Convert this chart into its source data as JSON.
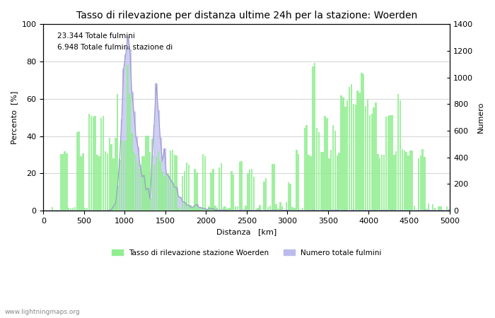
{
  "title": "Tasso di rilevazione per distanza ultime 24h per la stazione: Woerden",
  "xlabel": "Distanza   [km]",
  "ylabel_left": "Percento  [%]",
  "ylabel_right": "Numero",
  "annotation_line1": "23.344 Totale fulmini",
  "annotation_line2": "6.948 Totale fulmini stazione di",
  "legend_label_green": "Tasso di rilevazione stazione Woerden",
  "legend_label_blue": "Numero totale fulmini",
  "watermark": "www.lightningmaps.org",
  "xlim": [
    0,
    5000
  ],
  "ylim_left": [
    0,
    100
  ],
  "ylim_right": [
    0,
    1400
  ],
  "xticks": [
    0,
    500,
    1000,
    1500,
    2000,
    2500,
    3000,
    3500,
    4000,
    4500,
    5000
  ],
  "yticks_left": [
    0,
    20,
    40,
    60,
    80,
    100
  ],
  "yticks_right": [
    0,
    200,
    400,
    600,
    800,
    1000,
    1200,
    1400
  ],
  "bar_color_green": "#90ee90",
  "bar_color_blue": "#bbbbee",
  "line_color_blue": "#9999cc",
  "bg_color": "#ffffff",
  "grid_color": "#cccccc",
  "bin_width": 25,
  "title_fontsize": 10,
  "label_fontsize": 8,
  "figwidth": 7.0,
  "figheight": 4.5,
  "dpi": 100
}
